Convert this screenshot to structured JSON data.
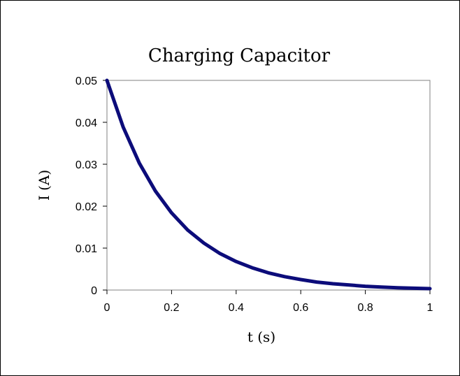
{
  "chart_data": {
    "type": "line",
    "title": "Charging Capacitor",
    "xlabel": "t (s)",
    "ylabel": "I (A)",
    "xlim": [
      0,
      1
    ],
    "ylim": [
      0,
      0.05
    ],
    "x_ticks": [
      0,
      0.2,
      0.4,
      0.6,
      0.8,
      1
    ],
    "x_tick_labels": [
      "0",
      "0.2",
      "0.4",
      "0.6",
      "0.8",
      "1"
    ],
    "y_ticks": [
      0,
      0.01,
      0.02,
      0.03,
      0.04,
      0.05
    ],
    "y_tick_labels": [
      "0",
      "0.01",
      "0.02",
      "0.03",
      "0.04",
      "0.05"
    ],
    "grid": false,
    "legend": "none",
    "series": [
      {
        "color": "#0c0c7a",
        "x": [
          0,
          0.05,
          0.1,
          0.15,
          0.2,
          0.25,
          0.3,
          0.35,
          0.4,
          0.45,
          0.5,
          0.55,
          0.6,
          0.65,
          0.7,
          0.75,
          0.8,
          0.85,
          0.9,
          0.95,
          1
        ],
        "y": [
          0.05,
          0.0389,
          0.0303,
          0.0236,
          0.0184,
          0.0143,
          0.0112,
          0.0087,
          0.0068,
          0.0053,
          0.0041,
          0.0032,
          0.0025,
          0.0019,
          0.0015,
          0.0012,
          0.0009,
          0.0007,
          0.00055,
          0.00043,
          0.00034
        ]
      }
    ]
  }
}
